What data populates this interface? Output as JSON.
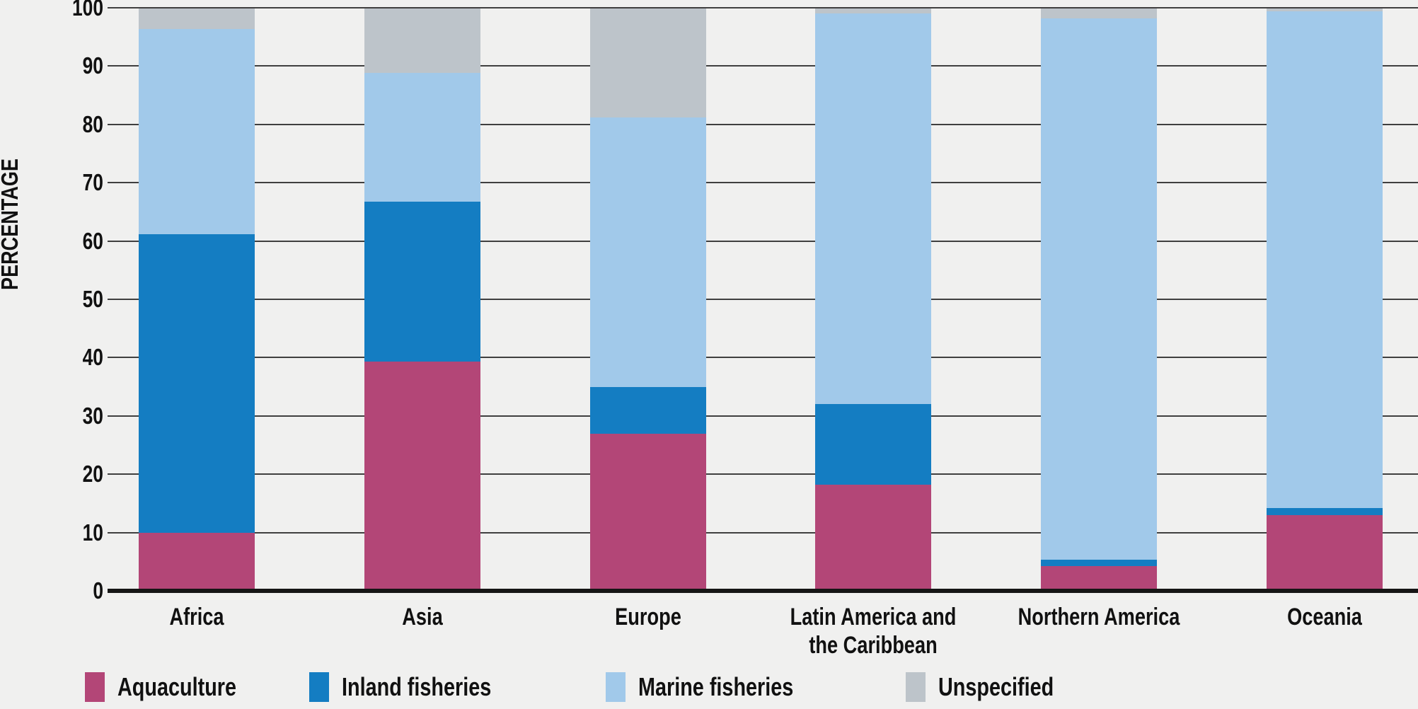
{
  "chart_data": {
    "type": "bar",
    "stacked": true,
    "orientation": "vertical",
    "title": "",
    "xlabel": "",
    "ylabel": "PERCENTAGE",
    "ylim": [
      0,
      100
    ],
    "yticks": [
      0,
      10,
      20,
      30,
      40,
      50,
      60,
      70,
      80,
      90,
      100
    ],
    "grid": true,
    "legend_position": "bottom",
    "categories": [
      "Africa",
      "Asia",
      "Europe",
      "Latin America and\nthe Caribbean",
      "Northern America",
      "Oceania"
    ],
    "series": [
      {
        "name": "Aquaculture",
        "color": "#b34677",
        "values": [
          10.0,
          39.3,
          27.0,
          18.2,
          4.2,
          13.0
        ]
      },
      {
        "name": "Inland fisheries",
        "color": "#147dc2",
        "values": [
          51.2,
          27.5,
          8.0,
          13.8,
          1.2,
          1.2
        ]
      },
      {
        "name": "Marine fisheries",
        "color": "#a1c9ea",
        "values": [
          35.2,
          22.0,
          46.2,
          67.0,
          92.8,
          85.2
        ]
      },
      {
        "name": "Unspecified",
        "color": "#bdc4ca",
        "values": [
          3.6,
          11.2,
          18.8,
          1.0,
          1.8,
          0.6
        ]
      }
    ]
  },
  "style": {
    "background": "#f0f0ef",
    "gridline_color": "#3f3f3f",
    "axis_color": "#151515",
    "text_color": "#111111"
  }
}
